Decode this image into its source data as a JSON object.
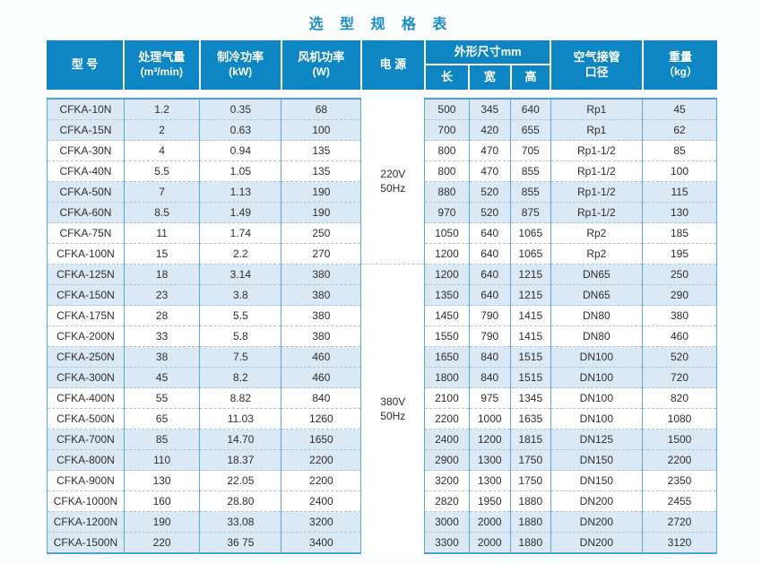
{
  "title": "选 型 规 格 表",
  "colors": {
    "title_blue": "#1e8dc8",
    "header_bg": "#0d86c3",
    "header_text": "#ffffff",
    "row_shaded_bg": "#dbe9f5",
    "row_white_bg": "#ffffff",
    "grid_solid": "#5aa7d2",
    "grid_dashed": "#a9c3d4",
    "body_text": "#2e2e2e"
  },
  "table": {
    "headers": {
      "model": "型 号",
      "airflow_line1": "处理气量",
      "airflow_line2": "(m³/min)",
      "cooling_line1": "制冷功率",
      "cooling_line2": "(kW)",
      "fan_line1": "风机功率",
      "fan_line2": "(W)",
      "power": "电  源",
      "dimensions": "外形尺寸mm",
      "length": "长",
      "width": "宽",
      "height": "高",
      "pipe_line1": "空气接管",
      "pipe_line2": "口径",
      "weight_line1": "重量",
      "weight_line2": "（kg）"
    },
    "power_groups": [
      {
        "label_line1": "220V",
        "label_line2": "50Hz",
        "row_span": 8
      },
      {
        "label_line1": "380V",
        "label_line2": "50Hz",
        "row_span": 14
      }
    ],
    "columns": [
      "model",
      "airflow",
      "cooling",
      "fan",
      "length",
      "width",
      "height",
      "pipe",
      "weight"
    ],
    "rows": [
      [
        "CFKA-10N",
        "1.2",
        "0.35",
        "68",
        "500",
        "345",
        "640",
        "Rp1",
        "45"
      ],
      [
        "CFKA-15N",
        "2",
        "0.63",
        "100",
        "700",
        "420",
        "655",
        "Rp1",
        "62"
      ],
      [
        "CFKA-30N",
        "4",
        "0.94",
        "135",
        "800",
        "470",
        "705",
        "Rp1-1/2",
        "85"
      ],
      [
        "CFKA-40N",
        "5.5",
        "1.05",
        "135",
        "800",
        "470",
        "855",
        "Rp1-1/2",
        "100"
      ],
      [
        "CFKA-50N",
        "7",
        "1.13",
        "190",
        "880",
        "520",
        "855",
        "Rp1-1/2",
        "115"
      ],
      [
        "CFKA-60N",
        "8.5",
        "1.49",
        "190",
        "970",
        "520",
        "875",
        "Rp1-1/2",
        "130"
      ],
      [
        "CFKA-75N",
        "11",
        "1.74",
        "250",
        "1050",
        "640",
        "1065",
        "Rp2",
        "185"
      ],
      [
        "CFKA-100N",
        "15",
        "2.2",
        "270",
        "1200",
        "640",
        "1065",
        "Rp2",
        "195"
      ],
      [
        "CFKA-125N",
        "18",
        "3.14",
        "380",
        "1200",
        "640",
        "1215",
        "DN65",
        "250"
      ],
      [
        "CFKA-150N",
        "23",
        "3.8",
        "380",
        "1350",
        "640",
        "1215",
        "DN65",
        "290"
      ],
      [
        "CFKA-175N",
        "28",
        "5.5",
        "380",
        "1450",
        "790",
        "1415",
        "DN80",
        "380"
      ],
      [
        "CFKA-200N",
        "33",
        "5.8",
        "380",
        "1550",
        "790",
        "1415",
        "DN80",
        "460"
      ],
      [
        "CFKA-250N",
        "38",
        "7.5",
        "460",
        "1650",
        "840",
        "1515",
        "DN100",
        "520"
      ],
      [
        "CFKA-300N",
        "45",
        "8.2",
        "460",
        "1800",
        "840",
        "1515",
        "DN100",
        "720"
      ],
      [
        "CFKA-400N",
        "55",
        "8.82",
        "840",
        "2100",
        "975",
        "1345",
        "DN100",
        "820"
      ],
      [
        "CFKA-500N",
        "65",
        "11.03",
        "1260",
        "2200",
        "1000",
        "1635",
        "DN100",
        "1080"
      ],
      [
        "CFKA-700N",
        "85",
        "14.70",
        "1650",
        "2400",
        "1200",
        "1815",
        "DN125",
        "1500"
      ],
      [
        "CFKA-800N",
        "110",
        "18.37",
        "2200",
        "2900",
        "1300",
        "1750",
        "DN150",
        "2200"
      ],
      [
        "CFKA-900N",
        "130",
        "22.05",
        "2200",
        "3200",
        "1300",
        "1750",
        "DN150",
        "2350"
      ],
      [
        "CFKA-1000N",
        "160",
        "28.80",
        "2400",
        "2820",
        "1950",
        "1880",
        "DN200",
        "2455"
      ],
      [
        "CFKA-1200N",
        "190",
        "33.08",
        "3200",
        "3000",
        "2000",
        "1880",
        "DN200",
        "2720"
      ],
      [
        "CFKA-1500N",
        "220",
        "36 75",
        "3400",
        "3300",
        "2000",
        "1880",
        "DN200",
        "3120"
      ]
    ]
  }
}
